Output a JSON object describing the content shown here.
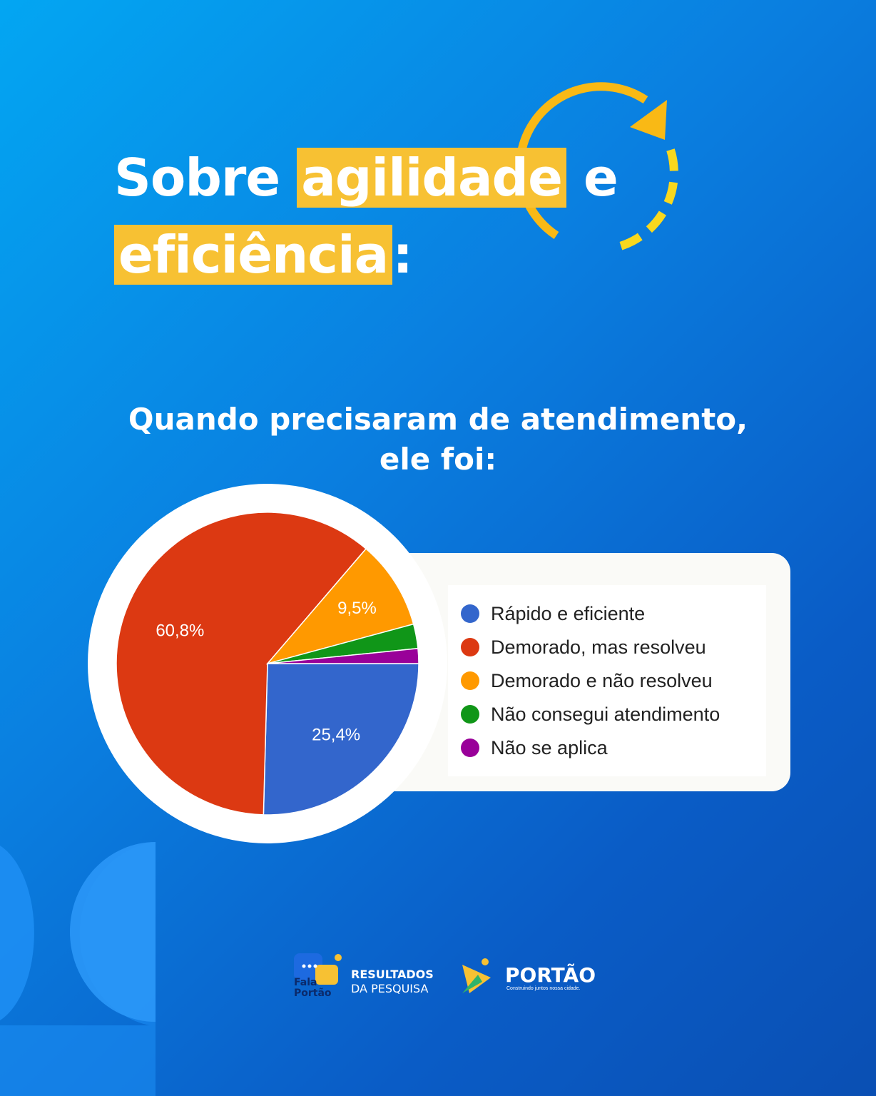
{
  "headline": {
    "part1": "Sobre ",
    "highlight1": "agilidade",
    "part2": " e",
    "highlight2": "eficiência",
    "part3": ":"
  },
  "question": {
    "line1": "Quando precisaram de atendimento,",
    "line2": "ele foi:"
  },
  "chart_data": {
    "type": "pie",
    "categories": [
      "Rápido e eficiente",
      "Demorado, mas resolveu",
      "Demorado e não resolveu",
      "Não consegui atendimento",
      "Não se aplica"
    ],
    "values": [
      25.4,
      60.8,
      9.5,
      2.6,
      1.6
    ],
    "data_labels": [
      "25,4%",
      "60,8%",
      "9,5%",
      "",
      ""
    ],
    "colors": [
      "#3366cc",
      "#dc3912",
      "#ff9900",
      "#109618",
      "#990099"
    ],
    "legend_position": "right"
  },
  "footer": {
    "logo_line1": "Fala",
    "logo_line2": "Portão",
    "results_line1": "RESULTADOS",
    "results_line2": "DA PESQUISA",
    "city_name": "PORTÃO",
    "city_slogan": "Construindo juntos nossa cidade."
  },
  "colors": {
    "accent_yellow": "#f7c133",
    "background_start": "#03a6f2",
    "background_end": "#0a4fb3"
  }
}
